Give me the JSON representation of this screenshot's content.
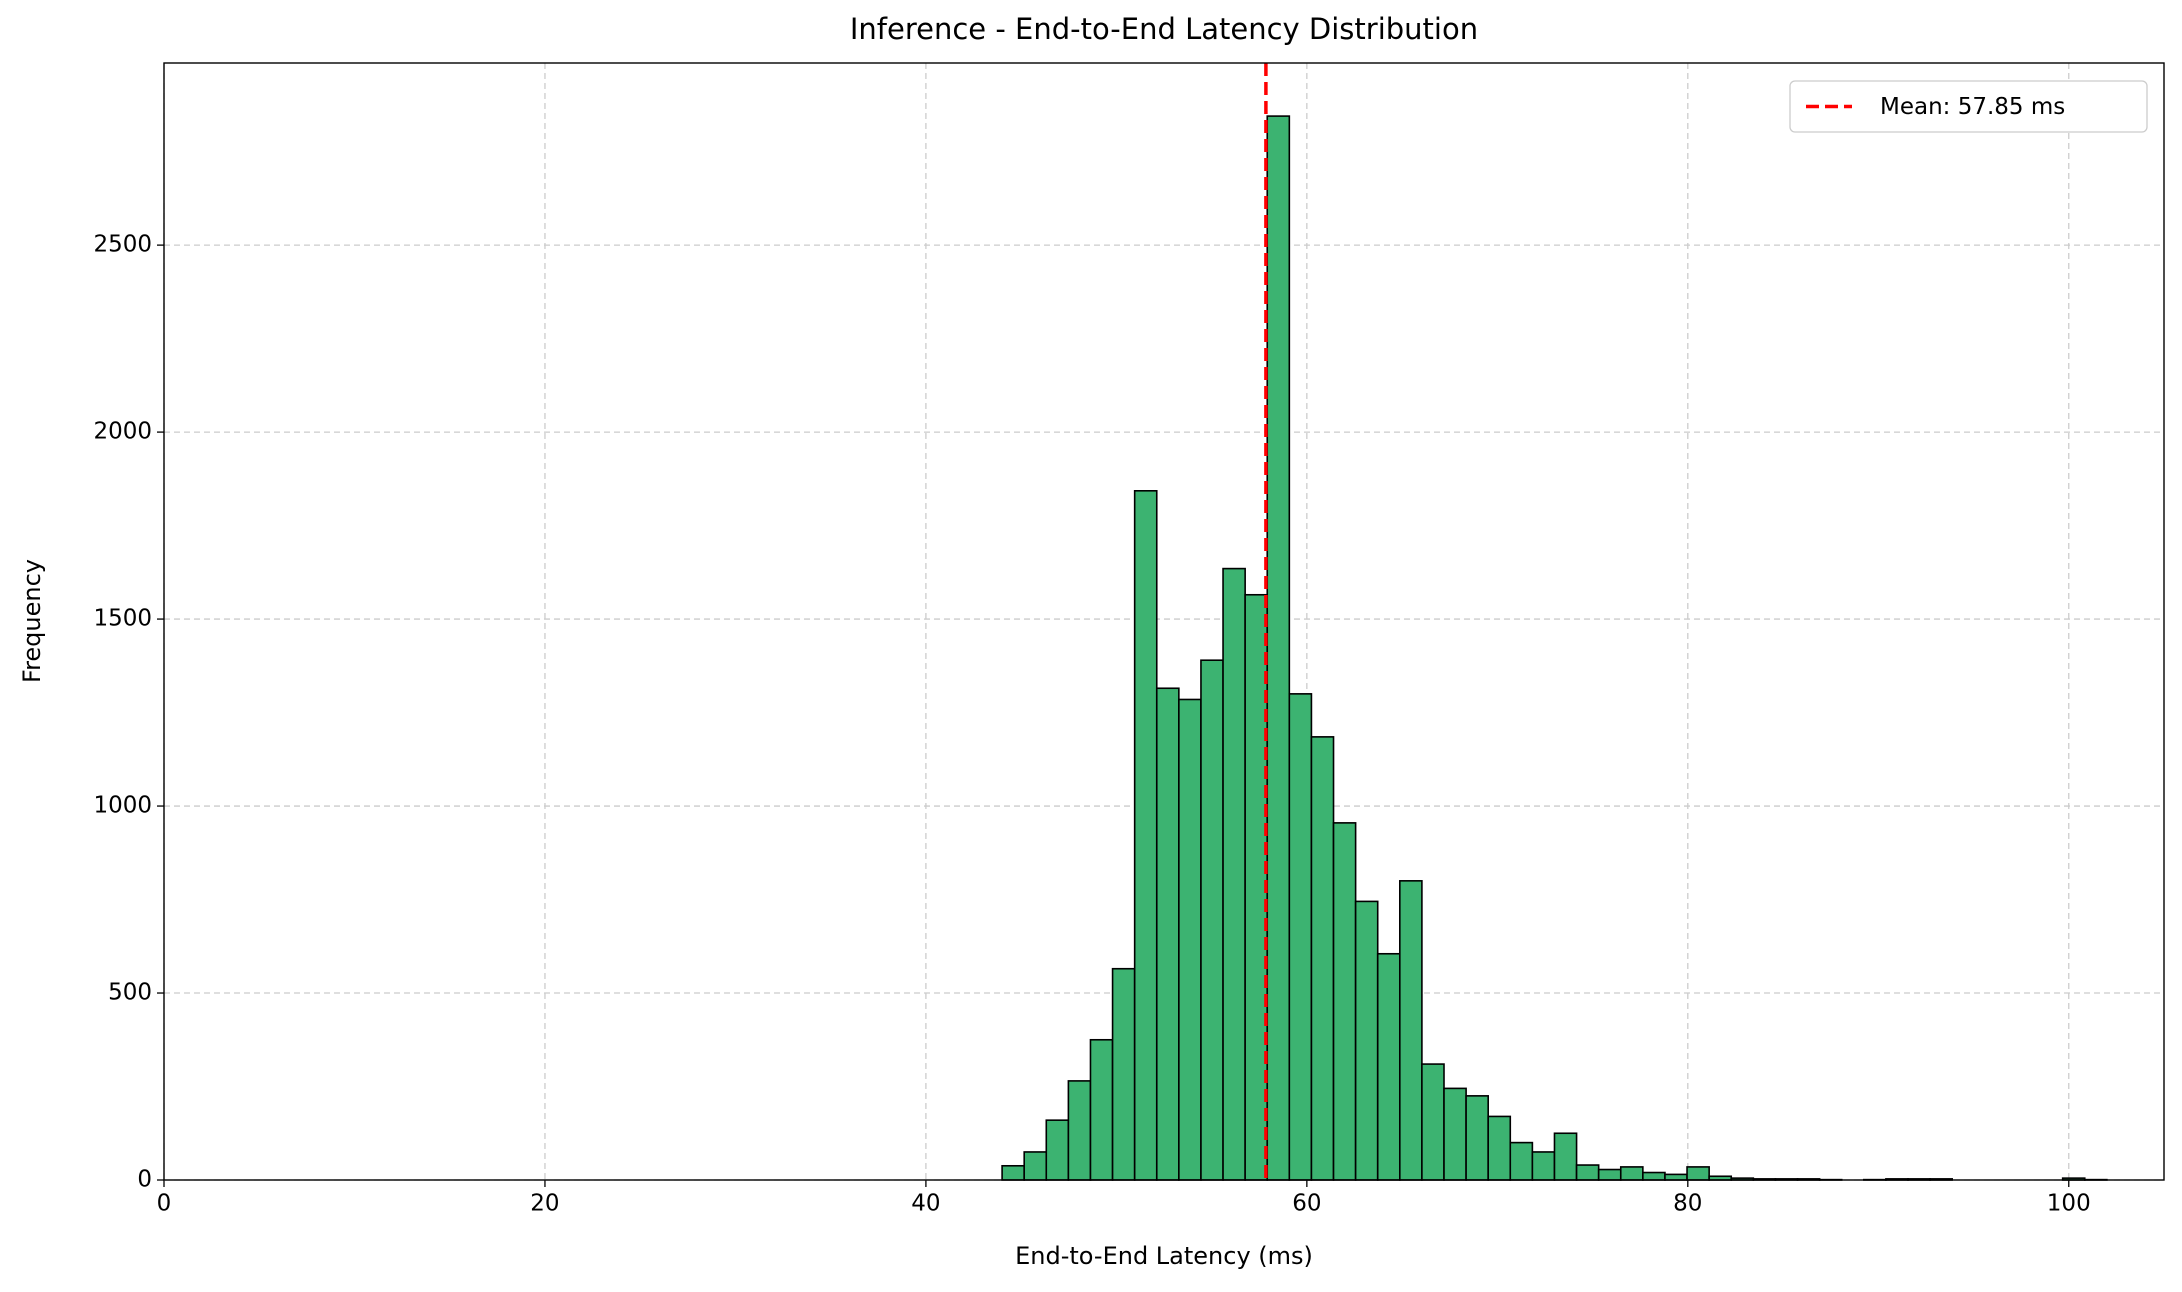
{
  "chart_data": {
    "type": "histogram",
    "title": "Inference - End-to-End Latency Distribution",
    "x_label": "End-to-End Latency (ms)",
    "y_label": "Frequency",
    "bins": [
      44.0,
      45.16,
      46.32,
      47.48,
      48.64,
      49.8,
      50.96,
      52.12,
      53.28,
      54.44,
      55.6,
      56.76,
      57.92,
      59.08,
      60.24,
      61.4,
      62.56,
      63.72,
      64.88,
      66.04,
      67.2,
      68.36,
      69.52,
      70.68,
      71.84,
      73.0,
      74.16,
      75.32,
      76.48,
      77.64,
      78.8,
      79.96,
      81.12,
      82.28,
      83.44,
      84.6,
      85.76,
      86.92,
      88.08,
      89.24,
      90.4,
      91.56,
      92.72,
      93.88,
      95.04,
      96.2,
      97.36,
      98.52,
      99.68,
      100.84,
      102.0
    ],
    "values": [
      38,
      75,
      160,
      265,
      375,
      565,
      1843,
      1315,
      1285,
      1390,
      1635,
      1565,
      2845,
      1300,
      1185,
      955,
      745,
      605,
      800,
      310,
      245,
      225,
      170,
      100,
      75,
      125,
      40,
      28,
      35,
      20,
      15,
      35,
      10,
      5,
      3,
      3,
      3,
      1,
      0,
      1,
      3,
      3,
      3,
      0,
      0,
      0,
      0,
      0,
      5,
      1
    ],
    "color": "#3cb371",
    "edge_color": "#000000",
    "mean": 57.85,
    "mean_label": "Mean: 57.85 ms",
    "mean_color": "#ff0000",
    "xlim": [
      0,
      105
    ],
    "xticks": [
      0,
      20,
      40,
      60,
      80,
      100
    ],
    "ylim": [
      0,
      2987
    ],
    "yticks": [
      0,
      500,
      1000,
      1500,
      2000,
      2500
    ],
    "grid": true,
    "legend_position": "upper right"
  }
}
